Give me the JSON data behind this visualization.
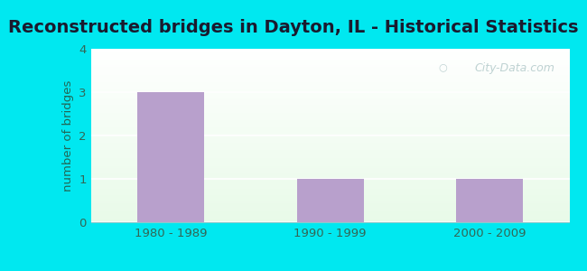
{
  "title": "Reconstructed bridges in Dayton, IL - Historical Statistics",
  "categories": [
    "1980 - 1989",
    "1990 - 1999",
    "2000 - 2009"
  ],
  "values": [
    3,
    1,
    1
  ],
  "bar_color": "#b8a0cc",
  "ylabel": "number of bridges",
  "ylim": [
    0,
    4
  ],
  "yticks": [
    0,
    1,
    2,
    3,
    4
  ],
  "bg_outer": "#00e8f0",
  "bg_plot_top_color": "#e8f8ee",
  "bg_plot_bottom_color": "#f0faf4",
  "title_fontsize": 14,
  "title_color": "#1a1a2e",
  "axis_label_color": "#226655",
  "tick_label_color": "#336655",
  "watermark_text": "City-Data.com",
  "watermark_color": "#b8cece",
  "grid_color": "#ffffff",
  "bar_edge_color": "none"
}
